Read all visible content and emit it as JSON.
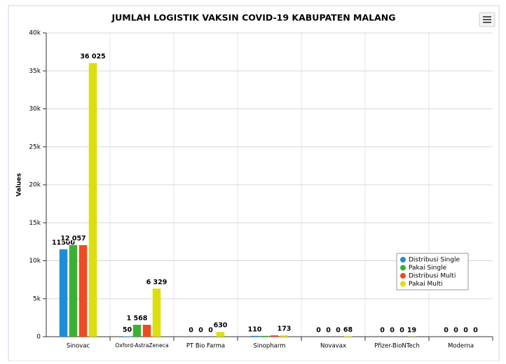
{
  "chart_data": {
    "type": "bar",
    "title": "JUMLAH LOGISTIK VAKSIN COVID-19 KABUPATEN MALANG",
    "y_label": "Values",
    "categories": [
      "Sinovac",
      "Oxford-AstraZeneca",
      "PT Bio Farma",
      "Sinopharm",
      "Novavax",
      "Pfizer-BioNTech",
      "Moderna"
    ],
    "series": [
      {
        "name": "Distribusi Single",
        "color": "#1f8dd6",
        "values": [
          11500,
          50,
          0,
          110,
          0,
          0,
          0
        ],
        "value_labels": [
          null,
          null,
          null,
          null,
          null,
          null,
          null
        ]
      },
      {
        "name": "Pakai Single",
        "color": "#3cb034",
        "values": [
          12057,
          1568,
          0,
          110,
          0,
          0,
          0
        ],
        "value_labels": [
          "12 057",
          "1 568",
          null,
          null,
          null,
          null,
          null
        ]
      },
      {
        "name": "Distribusi Multi",
        "color": "#ef4b23",
        "values": [
          12057,
          1568,
          0,
          173,
          0,
          0,
          0
        ],
        "value_labels": [
          null,
          null,
          null,
          null,
          null,
          null,
          null
        ]
      },
      {
        "name": "Pakai Multi",
        "color": "#dede0e",
        "values": [
          36025,
          6329,
          630,
          173,
          68,
          19,
          0
        ],
        "value_labels": [
          "36 025",
          "6 329",
          null,
          null,
          null,
          null,
          null
        ]
      }
    ],
    "ylim": [
      0,
      40000
    ],
    "yticks": [
      0,
      {
        "value": 5000,
        "label": "5k"
      },
      {
        "value": 10000,
        "label": "10k"
      },
      {
        "value": 15000,
        "label": "15k"
      },
      {
        "value": 20000,
        "label": "20k"
      },
      {
        "value": 25000,
        "label": "25k"
      },
      {
        "value": 30000,
        "label": "30k"
      },
      {
        "value": 35000,
        "label": "35k"
      },
      {
        "value": 40000,
        "label": "40k"
      }
    ],
    "grid": true,
    "legend": "lower right"
  }
}
